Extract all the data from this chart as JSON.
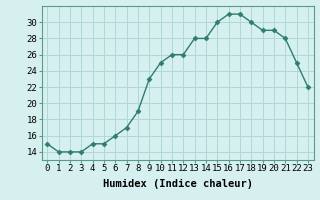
{
  "x": [
    0,
    1,
    2,
    3,
    4,
    5,
    6,
    7,
    8,
    9,
    10,
    11,
    12,
    13,
    14,
    15,
    16,
    17,
    18,
    19,
    20,
    21,
    22,
    23
  ],
  "y": [
    15,
    14,
    14,
    14,
    15,
    15,
    16,
    17,
    19,
    23,
    25,
    26,
    26,
    28,
    28,
    30,
    31,
    31,
    30,
    29,
    29,
    28,
    25,
    22
  ],
  "line_color": "#2e7d6e",
  "marker": "D",
  "marker_size": 2.5,
  "bg_color": "#d6f0f0",
  "grid_color": "#b0d8d8",
  "xlabel": "Humidex (Indice chaleur)",
  "ylim": [
    13,
    32
  ],
  "yticks": [
    14,
    16,
    18,
    20,
    22,
    24,
    26,
    28,
    30
  ],
  "xlim": [
    -0.5,
    23.5
  ],
  "xticks": [
    0,
    1,
    2,
    3,
    4,
    5,
    6,
    7,
    8,
    9,
    10,
    11,
    12,
    13,
    14,
    15,
    16,
    17,
    18,
    19,
    20,
    21,
    22,
    23
  ],
  "xlabel_fontsize": 7.5,
  "tick_fontsize": 6.5,
  "line_width": 1.0
}
